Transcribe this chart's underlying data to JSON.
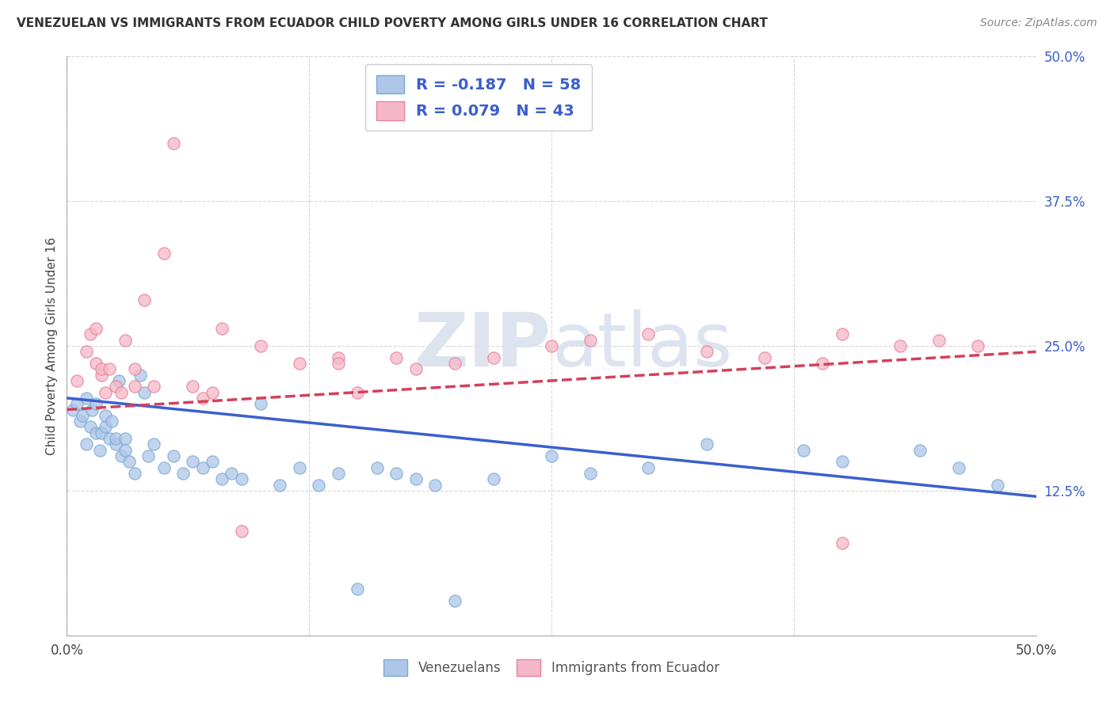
{
  "title": "VENEZUELAN VS IMMIGRANTS FROM ECUADOR CHILD POVERTY AMONG GIRLS UNDER 16 CORRELATION CHART",
  "source": "Source: ZipAtlas.com",
  "xmin": 0.0,
  "xmax": 50.0,
  "ymin": 0.0,
  "ymax": 50.0,
  "blue_R": -0.187,
  "blue_N": 58,
  "pink_R": 0.079,
  "pink_N": 43,
  "blue_color": "#aec6e8",
  "pink_color": "#f5b8c8",
  "blue_edge": "#7baad4",
  "pink_edge": "#e8809a",
  "line_blue": "#3a5fcd",
  "line_pink": "#d4405a",
  "watermark_color": "#dde3ef",
  "legend_label_blue": "Venezuelans",
  "legend_label_pink": "Immigrants from Ecuador",
  "blue_line_y0": 20.5,
  "blue_line_y1": 12.0,
  "pink_line_y0": 19.5,
  "pink_line_y1": 24.5,
  "blue_scatter_x": [
    0.3,
    0.5,
    0.7,
    0.8,
    1.0,
    1.0,
    1.2,
    1.3,
    1.5,
    1.5,
    1.7,
    1.8,
    2.0,
    2.0,
    2.2,
    2.3,
    2.5,
    2.5,
    2.7,
    2.8,
    3.0,
    3.0,
    3.2,
    3.5,
    3.8,
    4.0,
    4.2,
    4.5,
    5.0,
    5.5,
    6.0,
    6.5,
    7.0,
    7.5,
    8.0,
    8.5,
    9.0,
    10.0,
    11.0,
    12.0,
    13.0,
    14.0,
    15.0,
    16.0,
    17.0,
    18.0,
    19.0,
    20.0,
    22.0,
    25.0,
    27.0,
    30.0,
    33.0,
    38.0,
    40.0,
    44.0,
    46.0,
    48.0
  ],
  "blue_scatter_y": [
    19.5,
    20.0,
    18.5,
    19.0,
    16.5,
    20.5,
    18.0,
    19.5,
    17.5,
    20.0,
    16.0,
    17.5,
    18.0,
    19.0,
    17.0,
    18.5,
    16.5,
    17.0,
    22.0,
    15.5,
    17.0,
    16.0,
    15.0,
    14.0,
    22.5,
    21.0,
    15.5,
    16.5,
    14.5,
    15.5,
    14.0,
    15.0,
    14.5,
    15.0,
    13.5,
    14.0,
    13.5,
    20.0,
    13.0,
    14.5,
    13.0,
    14.0,
    4.0,
    14.5,
    14.0,
    13.5,
    13.0,
    3.0,
    13.5,
    15.5,
    14.0,
    14.5,
    16.5,
    16.0,
    15.0,
    16.0,
    14.5,
    13.0
  ],
  "pink_scatter_x": [
    0.5,
    1.0,
    1.2,
    1.5,
    1.5,
    1.8,
    1.8,
    2.0,
    2.2,
    2.5,
    2.8,
    3.0,
    3.5,
    3.5,
    4.0,
    4.5,
    5.0,
    5.5,
    6.5,
    7.0,
    7.5,
    8.0,
    9.0,
    10.0,
    12.0,
    14.0,
    15.0,
    17.0,
    18.0,
    20.0,
    22.0,
    25.0,
    27.0,
    30.0,
    33.0,
    36.0,
    39.0,
    40.0,
    43.0,
    45.0,
    47.0,
    14.0,
    40.0
  ],
  "pink_scatter_y": [
    22.0,
    24.5,
    26.0,
    23.5,
    26.5,
    22.5,
    23.0,
    21.0,
    23.0,
    21.5,
    21.0,
    25.5,
    21.5,
    23.0,
    29.0,
    21.5,
    33.0,
    42.5,
    21.5,
    20.5,
    21.0,
    26.5,
    9.0,
    25.0,
    23.5,
    24.0,
    21.0,
    24.0,
    23.0,
    23.5,
    24.0,
    25.0,
    25.5,
    26.0,
    24.5,
    24.0,
    23.5,
    26.0,
    25.0,
    25.5,
    25.0,
    23.5,
    8.0
  ]
}
